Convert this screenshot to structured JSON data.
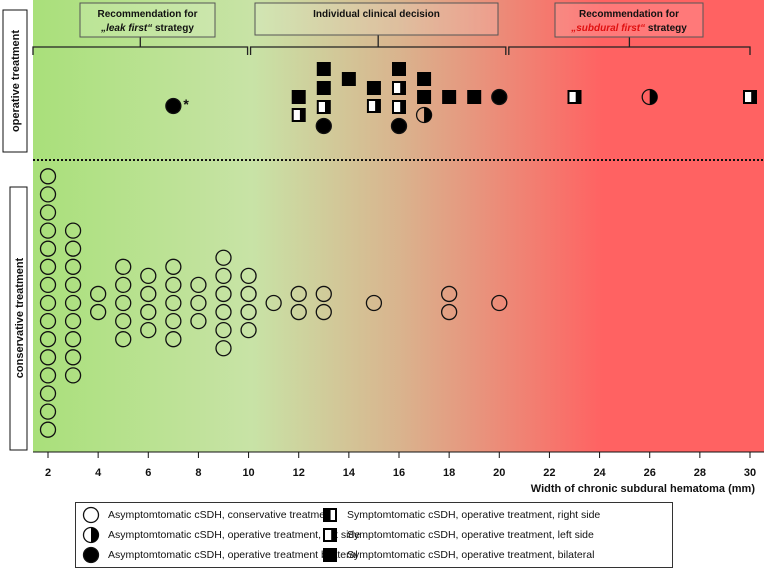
{
  "chart_data": {
    "type": "scatter",
    "xlabel": "Width of chronic subdural hematoma (mm)",
    "xlim": [
      2,
      30
    ],
    "xticks": [
      2,
      4,
      6,
      8,
      10,
      12,
      14,
      16,
      18,
      20,
      22,
      24,
      26,
      28,
      30
    ],
    "row_labels": {
      "operative": "operative treatment",
      "conservative": "conservative treatment"
    },
    "zones": [
      {
        "label_line1": "Recommendation for",
        "label_line2_italic": "„leak first“",
        "label_line2_rest": " strategy",
        "from": 2,
        "to": 10
      },
      {
        "label_line1": "Individual clinical decision",
        "from": 10,
        "to": 20.3
      },
      {
        "label_line1": "Recommendation for",
        "label_line2_italic": "„subdural first“",
        "label_line2_rest": " strategy",
        "from": 20.3,
        "to": 30
      }
    ],
    "background_gradient": {
      "left": "#a9e07a",
      "middle": "#c8e3a6",
      "center_right": "#d9b48e",
      "right": "#ff6262"
    },
    "conservative_counts": {
      "2": 15,
      "3": 9,
      "4": 2,
      "5": 5,
      "6": 4,
      "7": 5,
      "8": 3,
      "9": 6,
      "10": 4,
      "11": 1,
      "12": 2,
      "13": 2,
      "15": 1,
      "18": 2,
      "20": 1
    },
    "operative": [
      {
        "x": 7,
        "types": [
          "circle-bilateral"
        ],
        "annotation": "*"
      },
      {
        "x": 12,
        "types": [
          "square-bilateral",
          "square-left"
        ]
      },
      {
        "x": 13,
        "types": [
          "square-bilateral",
          "square-bilateral",
          "square-left",
          "circle-bilateral"
        ]
      },
      {
        "x": 14,
        "types": [
          "square-bilateral"
        ]
      },
      {
        "x": 15,
        "types": [
          "square-bilateral",
          "square-left"
        ]
      },
      {
        "x": 16,
        "types": [
          "square-bilateral",
          "square-left",
          "square-left",
          "circle-bilateral"
        ]
      },
      {
        "x": 17,
        "types": [
          "square-bilateral",
          "square-bilateral",
          "circle-left"
        ]
      },
      {
        "x": 18,
        "types": [
          "square-bilateral"
        ]
      },
      {
        "x": 19,
        "types": [
          "square-bilateral"
        ]
      },
      {
        "x": 20,
        "types": [
          "circle-bilateral"
        ]
      },
      {
        "x": 23,
        "types": [
          "square-left"
        ]
      },
      {
        "x": 26,
        "types": [
          "circle-left"
        ]
      },
      {
        "x": 30,
        "types": [
          "square-left"
        ]
      }
    ],
    "legend": [
      {
        "symbol": "circle-open",
        "label": "Asymptomtomatic cSDH, conservative treatment"
      },
      {
        "symbol": "circle-left",
        "label": "Asymptomtomatic cSDH, operative treatment, left side"
      },
      {
        "symbol": "circle-bilateral",
        "label": "Asymptomtomatic cSDH, operative treatment bilateral"
      },
      {
        "symbol": "square-right",
        "label": "Symptomtomatic cSDH, operative treatment, right side"
      },
      {
        "symbol": "square-left",
        "label": "Symptomtomatic cSDH, operative treatment, left side"
      },
      {
        "symbol": "square-bilateral",
        "label": "Symptomtomatic cSDH, operative treatment, bilateral"
      }
    ]
  }
}
